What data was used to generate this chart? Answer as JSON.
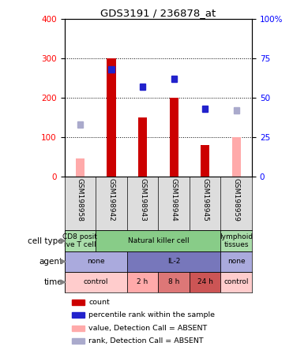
{
  "title": "GDS3191 / 236878_at",
  "samples": [
    "GSM198958",
    "GSM198942",
    "GSM198943",
    "GSM198944",
    "GSM198945",
    "GSM198959"
  ],
  "count_values": [
    null,
    300,
    150,
    200,
    80,
    null
  ],
  "count_absent_values": [
    45,
    null,
    null,
    null,
    null,
    100
  ],
  "rank_values_pct": [
    null,
    68,
    57,
    62,
    43,
    null
  ],
  "rank_absent_values_pct": [
    33,
    null,
    null,
    null,
    null,
    42
  ],
  "ylim_left": [
    0,
    400
  ],
  "ylim_right": [
    0,
    100
  ],
  "yticks_left": [
    0,
    100,
    200,
    300,
    400
  ],
  "yticks_right": [
    0,
    25,
    50,
    75,
    100
  ],
  "ytick_labels_right": [
    "0",
    "25",
    "50",
    "75",
    "100%"
  ],
  "bar_color": "#cc0000",
  "absent_bar_color": "#ffaaaa",
  "rank_color": "#2222cc",
  "rank_absent_color": "#aaaacc",
  "cell_type_data": [
    {
      "label": "CD8 posit\nive T cell",
      "span": [
        0,
        1
      ],
      "color": "#aaddaa"
    },
    {
      "label": "Natural killer cell",
      "span": [
        1,
        5
      ],
      "color": "#88cc88"
    },
    {
      "label": "lymphoid\ntissues",
      "span": [
        5,
        6
      ],
      "color": "#aaddaa"
    }
  ],
  "agent_data": [
    {
      "label": "none",
      "span": [
        0,
        2
      ],
      "color": "#aaaadd"
    },
    {
      "label": "IL-2",
      "span": [
        2,
        5
      ],
      "color": "#7777bb"
    },
    {
      "label": "none",
      "span": [
        5,
        6
      ],
      "color": "#aaaadd"
    }
  ],
  "time_data": [
    {
      "label": "control",
      "span": [
        0,
        2
      ],
      "color": "#ffcccc"
    },
    {
      "label": "2 h",
      "span": [
        2,
        3
      ],
      "color": "#ffaaaa"
    },
    {
      "label": "8 h",
      "span": [
        3,
        4
      ],
      "color": "#dd7777"
    },
    {
      "label": "24 h",
      "span": [
        4,
        5
      ],
      "color": "#cc5555"
    },
    {
      "label": "control",
      "span": [
        5,
        6
      ],
      "color": "#ffcccc"
    }
  ],
  "legend_items": [
    {
      "label": "count",
      "color": "#cc0000"
    },
    {
      "label": "percentile rank within the sample",
      "color": "#2222cc"
    },
    {
      "label": "value, Detection Call = ABSENT",
      "color": "#ffaaaa"
    },
    {
      "label": "rank, Detection Call = ABSENT",
      "color": "#aaaacc"
    }
  ],
  "row_labels": [
    "cell type",
    "agent",
    "time"
  ],
  "label_bg": "#dddddd",
  "plot_bg": "#ffffff",
  "grid_color": "#000000"
}
